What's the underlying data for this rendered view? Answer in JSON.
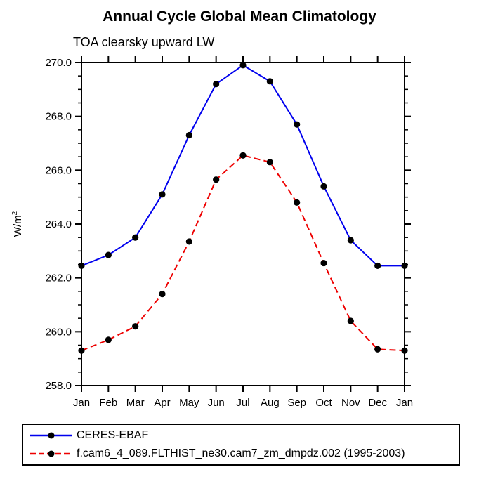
{
  "title": "Annual Cycle Global Mean Climatology",
  "subtitle": "TOA clearsky upward LW",
  "chart_data": {
    "type": "line",
    "title": "Annual Cycle Global Mean Climatology",
    "subtitle": "TOA clearsky upward LW",
    "ylabel_base": "W/m",
    "ylabel_exponent": "2",
    "xlabel": "",
    "categories": [
      "Jan",
      "Feb",
      "Mar",
      "Apr",
      "May",
      "Jun",
      "Jul",
      "Aug",
      "Sep",
      "Oct",
      "Nov",
      "Dec",
      "Jan"
    ],
    "ylim": [
      258.0,
      270.0
    ],
    "y_major_ticks": [
      "258.0",
      "260.0",
      "262.0",
      "264.0",
      "266.0",
      "268.0",
      "270.0"
    ],
    "y_minor_step": 0.5,
    "grid": false,
    "frame": "box-with-outward-ticks",
    "legend_position": "bottom-outside",
    "series": [
      {
        "name": "CERES-EBAF",
        "color": "#0000ee",
        "line_style": "solid",
        "marker": "filled-circle",
        "marker_color": "#000000",
        "values": [
          262.45,
          262.85,
          263.5,
          265.1,
          267.3,
          269.2,
          269.9,
          269.3,
          267.7,
          265.4,
          263.4,
          262.45,
          262.45
        ]
      },
      {
        "name": "f.cam6_4_089.FLTHIST_ne30.cam7_zm_dmpdz.002 (1995-2003)",
        "color": "#ee0000",
        "line_style": "dashed",
        "marker": "filled-circle",
        "marker_color": "#000000",
        "values": [
          259.3,
          259.7,
          260.2,
          261.4,
          263.35,
          265.65,
          266.55,
          266.3,
          264.8,
          262.55,
          260.4,
          259.35,
          259.3
        ]
      }
    ]
  }
}
